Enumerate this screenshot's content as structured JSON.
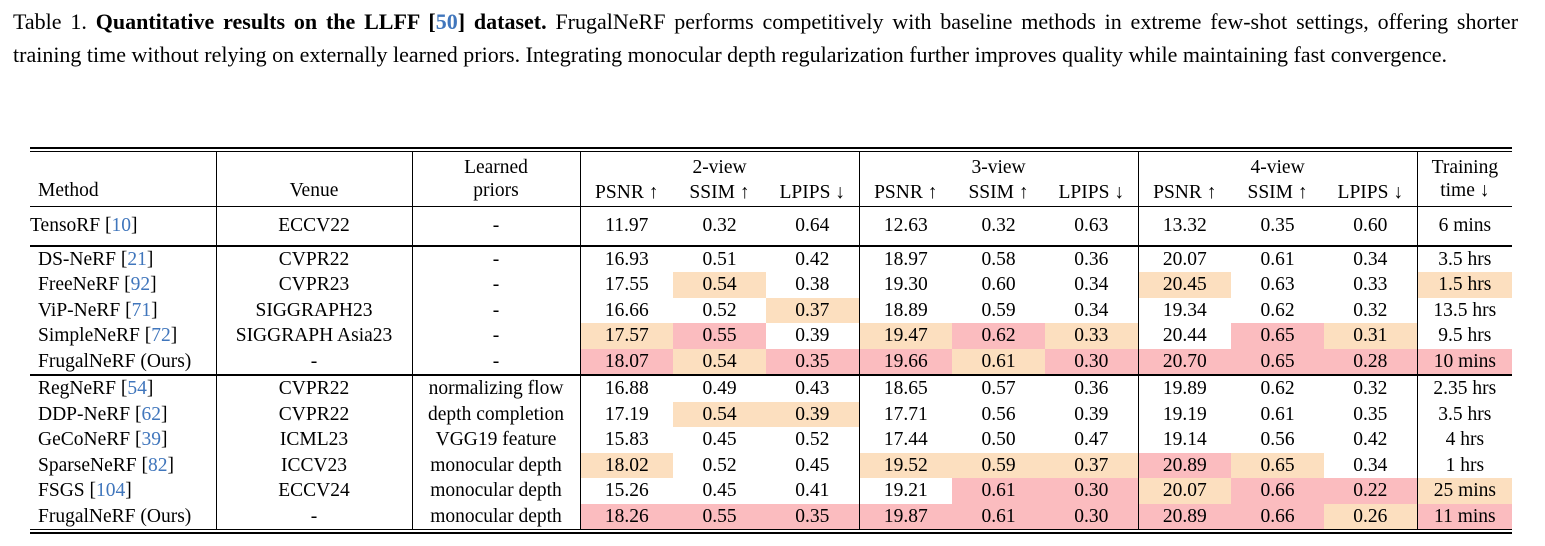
{
  "colors": {
    "best": "#FBBCBF",
    "second": "#FCDFBF",
    "cite": "#4076BC"
  },
  "caption": {
    "prefix": "Table 1. ",
    "title_pre": "Quantitative results on the LLFF [",
    "cite": "50",
    "title_post": "] dataset.",
    "body": " FrugalNeRF performs competitively with baseline methods in extreme few-shot settings, offering shorter training time without relying on externally learned priors. Integrating monocular depth regularization further improves quality while maintaining fast convergence."
  },
  "table": {
    "header": {
      "method": "Method",
      "venue": "Venue",
      "priors_line1": "Learned",
      "priors_line2": "priors",
      "group_2view": "2-view",
      "group_3view": "3-view",
      "group_4view": "4-view",
      "psnr": "PSNR ↑",
      "ssim": "SSIM ↑",
      "lpips": "LPIPS ↓",
      "time_line1": "Training",
      "time_line2": "time ↓"
    },
    "highlight_legend": {
      "best": 2,
      "second_best": 1,
      "none": 0
    },
    "groups": [
      [
        {
          "method": "TensoRF",
          "cite": "10",
          "venue": "ECCV22",
          "priors": "-",
          "cells": [
            {
              "v": "11.97",
              "h": 0
            },
            {
              "v": "0.32",
              "h": 0
            },
            {
              "v": "0.64",
              "h": 0
            },
            {
              "v": "12.63",
              "h": 0
            },
            {
              "v": "0.32",
              "h": 0
            },
            {
              "v": "0.63",
              "h": 0
            },
            {
              "v": "13.32",
              "h": 0
            },
            {
              "v": "0.35",
              "h": 0
            },
            {
              "v": "0.60",
              "h": 0
            },
            {
              "v": "6 mins",
              "h": 0
            }
          ]
        }
      ],
      [
        {
          "method": "DS-NeRF",
          "cite": "21",
          "venue": "CVPR22",
          "priors": "-",
          "cells": [
            {
              "v": "16.93",
              "h": 0
            },
            {
              "v": "0.51",
              "h": 0
            },
            {
              "v": "0.42",
              "h": 0
            },
            {
              "v": "18.97",
              "h": 0
            },
            {
              "v": "0.58",
              "h": 0
            },
            {
              "v": "0.36",
              "h": 0
            },
            {
              "v": "20.07",
              "h": 0
            },
            {
              "v": "0.61",
              "h": 0
            },
            {
              "v": "0.34",
              "h": 0
            },
            {
              "v": "3.5 hrs",
              "h": 0
            }
          ]
        },
        {
          "method": "FreeNeRF",
          "cite": "92",
          "venue": "CVPR23",
          "priors": "-",
          "cells": [
            {
              "v": "17.55",
              "h": 0
            },
            {
              "v": "0.54",
              "h": 1
            },
            {
              "v": "0.38",
              "h": 0
            },
            {
              "v": "19.30",
              "h": 0
            },
            {
              "v": "0.60",
              "h": 0
            },
            {
              "v": "0.34",
              "h": 0
            },
            {
              "v": "20.45",
              "h": 1
            },
            {
              "v": "0.63",
              "h": 0
            },
            {
              "v": "0.33",
              "h": 0
            },
            {
              "v": "1.5 hrs",
              "h": 1
            }
          ]
        },
        {
          "method": "ViP-NeRF",
          "cite": "71",
          "venue": "SIGGRAPH23",
          "priors": "-",
          "cells": [
            {
              "v": "16.66",
              "h": 0
            },
            {
              "v": "0.52",
              "h": 0
            },
            {
              "v": "0.37",
              "h": 1
            },
            {
              "v": "18.89",
              "h": 0
            },
            {
              "v": "0.59",
              "h": 0
            },
            {
              "v": "0.34",
              "h": 0
            },
            {
              "v": "19.34",
              "h": 0
            },
            {
              "v": "0.62",
              "h": 0
            },
            {
              "v": "0.32",
              "h": 0
            },
            {
              "v": "13.5 hrs",
              "h": 0
            }
          ]
        },
        {
          "method": "SimpleNeRF",
          "cite": "72",
          "venue": "SIGGRAPH Asia23",
          "priors": "-",
          "cells": [
            {
              "v": "17.57",
              "h": 1
            },
            {
              "v": "0.55",
              "h": 2
            },
            {
              "v": "0.39",
              "h": 0
            },
            {
              "v": "19.47",
              "h": 1
            },
            {
              "v": "0.62",
              "h": 2
            },
            {
              "v": "0.33",
              "h": 1
            },
            {
              "v": "20.44",
              "h": 0
            },
            {
              "v": "0.65",
              "h": 2
            },
            {
              "v": "0.31",
              "h": 1
            },
            {
              "v": "9.5 hrs",
              "h": 0
            }
          ]
        },
        {
          "method": "FrugalNeRF (Ours)",
          "cite": null,
          "venue": "-",
          "priors": "-",
          "cells": [
            {
              "v": "18.07",
              "h": 2
            },
            {
              "v": "0.54",
              "h": 1
            },
            {
              "v": "0.35",
              "h": 2
            },
            {
              "v": "19.66",
              "h": 2
            },
            {
              "v": "0.61",
              "h": 1
            },
            {
              "v": "0.30",
              "h": 2
            },
            {
              "v": "20.70",
              "h": 2
            },
            {
              "v": "0.65",
              "h": 2
            },
            {
              "v": "0.28",
              "h": 2
            },
            {
              "v": "10 mins",
              "h": 2
            }
          ]
        }
      ],
      [
        {
          "method": "RegNeRF",
          "cite": "54",
          "venue": "CVPR22",
          "priors": "normalizing flow",
          "cells": [
            {
              "v": "16.88",
              "h": 0
            },
            {
              "v": "0.49",
              "h": 0
            },
            {
              "v": "0.43",
              "h": 0
            },
            {
              "v": "18.65",
              "h": 0
            },
            {
              "v": "0.57",
              "h": 0
            },
            {
              "v": "0.36",
              "h": 0
            },
            {
              "v": "19.89",
              "h": 0
            },
            {
              "v": "0.62",
              "h": 0
            },
            {
              "v": "0.32",
              "h": 0
            },
            {
              "v": "2.35 hrs",
              "h": 0
            }
          ]
        },
        {
          "method": "DDP-NeRF",
          "cite": "62",
          "venue": "CVPR22",
          "priors": "depth completion",
          "cells": [
            {
              "v": "17.19",
              "h": 0
            },
            {
              "v": "0.54",
              "h": 1
            },
            {
              "v": "0.39",
              "h": 1
            },
            {
              "v": "17.71",
              "h": 0
            },
            {
              "v": "0.56",
              "h": 0
            },
            {
              "v": "0.39",
              "h": 0
            },
            {
              "v": "19.19",
              "h": 0
            },
            {
              "v": "0.61",
              "h": 0
            },
            {
              "v": "0.35",
              "h": 0
            },
            {
              "v": "3.5 hrs",
              "h": 0
            }
          ]
        },
        {
          "method": "GeCoNeRF",
          "cite": "39",
          "venue": "ICML23",
          "priors": "VGG19 feature",
          "cells": [
            {
              "v": "15.83",
              "h": 0
            },
            {
              "v": "0.45",
              "h": 0
            },
            {
              "v": "0.52",
              "h": 0
            },
            {
              "v": "17.44",
              "h": 0
            },
            {
              "v": "0.50",
              "h": 0
            },
            {
              "v": "0.47",
              "h": 0
            },
            {
              "v": "19.14",
              "h": 0
            },
            {
              "v": "0.56",
              "h": 0
            },
            {
              "v": "0.42",
              "h": 0
            },
            {
              "v": "4 hrs",
              "h": 0
            }
          ]
        },
        {
          "method": "SparseNeRF",
          "cite": "82",
          "venue": "ICCV23",
          "priors": "monocular depth",
          "cells": [
            {
              "v": "18.02",
              "h": 1
            },
            {
              "v": "0.52",
              "h": 0
            },
            {
              "v": "0.45",
              "h": 0
            },
            {
              "v": "19.52",
              "h": 1
            },
            {
              "v": "0.59",
              "h": 1
            },
            {
              "v": "0.37",
              "h": 1
            },
            {
              "v": "20.89",
              "h": 2
            },
            {
              "v": "0.65",
              "h": 1
            },
            {
              "v": "0.34",
              "h": 0
            },
            {
              "v": "1 hrs",
              "h": 0
            }
          ]
        },
        {
          "method": "FSGS",
          "cite": "104",
          "venue": "ECCV24",
          "priors": "monocular depth",
          "cells": [
            {
              "v": "15.26",
              "h": 0
            },
            {
              "v": "0.45",
              "h": 0
            },
            {
              "v": "0.41",
              "h": 0
            },
            {
              "v": "19.21",
              "h": 0
            },
            {
              "v": "0.61",
              "h": 2
            },
            {
              "v": "0.30",
              "h": 2
            },
            {
              "v": "20.07",
              "h": 1
            },
            {
              "v": "0.66",
              "h": 2
            },
            {
              "v": "0.22",
              "h": 2
            },
            {
              "v": "25 mins",
              "h": 1
            }
          ]
        },
        {
          "method": "FrugalNeRF (Ours)",
          "cite": null,
          "venue": "-",
          "priors": "monocular depth",
          "cells": [
            {
              "v": "18.26",
              "h": 2
            },
            {
              "v": "0.55",
              "h": 2
            },
            {
              "v": "0.35",
              "h": 2
            },
            {
              "v": "19.87",
              "h": 2
            },
            {
              "v": "0.61",
              "h": 2
            },
            {
              "v": "0.30",
              "h": 2
            },
            {
              "v": "20.89",
              "h": 2
            },
            {
              "v": "0.66",
              "h": 2
            },
            {
              "v": "0.26",
              "h": 1
            },
            {
              "v": "11 mins",
              "h": 2
            }
          ]
        }
      ]
    ]
  }
}
